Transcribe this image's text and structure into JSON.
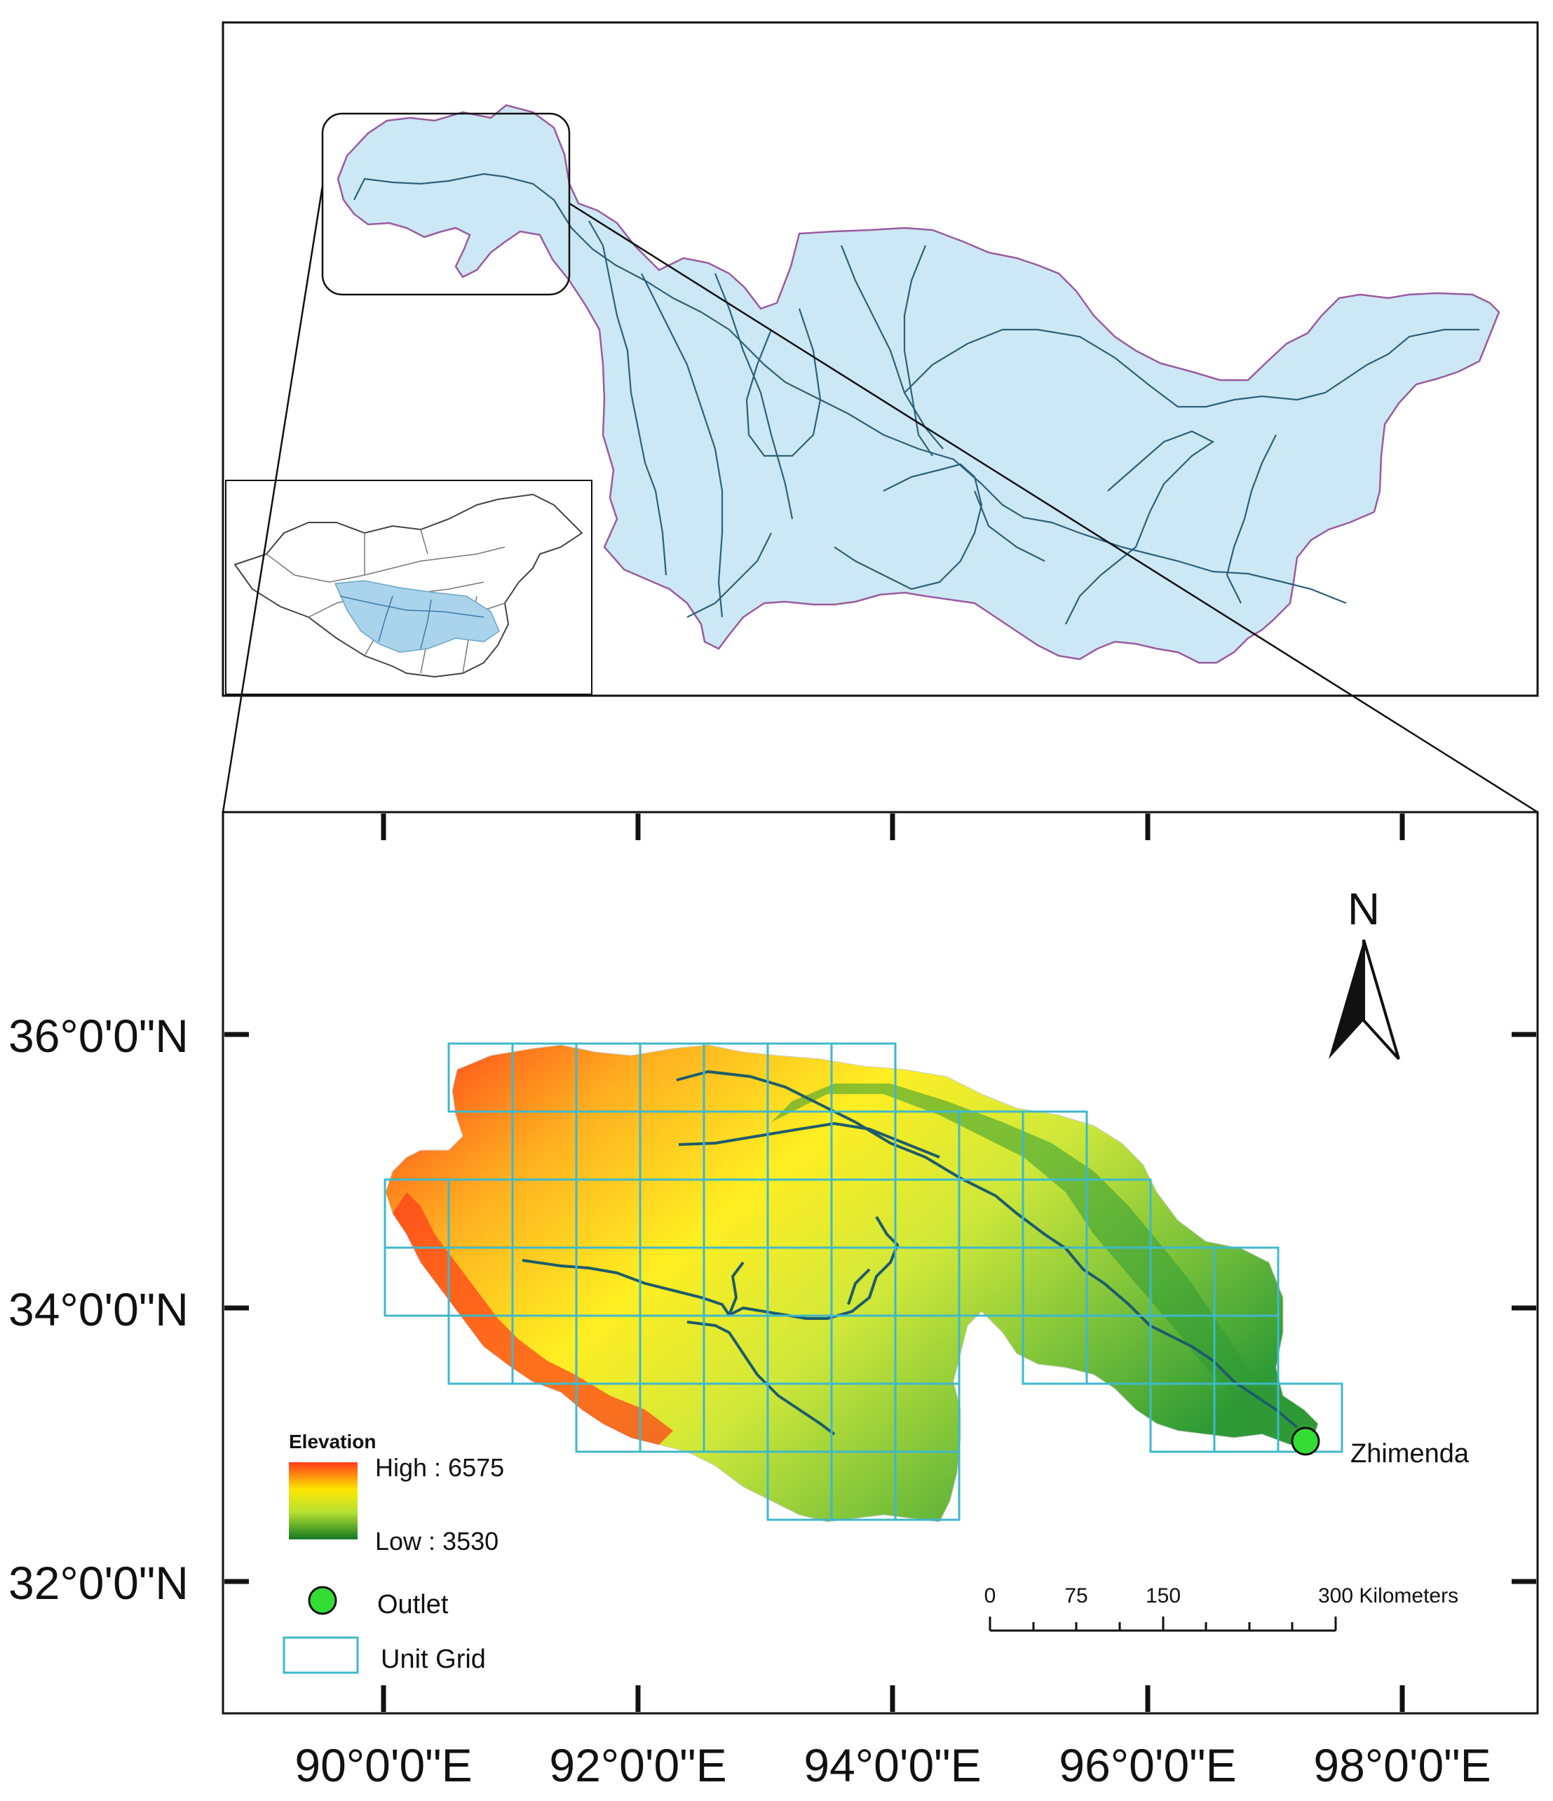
{
  "overview_panel": {
    "basin_fill": "#cce8f4",
    "basin_outline": "#9b5aa0",
    "river_color": "#2d5f7a"
  },
  "detail_panel": {
    "north_arrow": {
      "label": "N",
      "icon": "north-arrow-icon"
    },
    "lat_labels": [
      "36°0'0\"N",
      "34°0'0\"N",
      "32°0'0\"N"
    ],
    "lon_labels": [
      "90°0'0\"E",
      "92°0'0\"E",
      "94°0'0\"E",
      "96°0'0\"E",
      "98°0'0\"E"
    ],
    "outlet": {
      "label": "Zhimenda",
      "color": "#33dd33"
    },
    "grid_color": "#3fb8cc",
    "legend": {
      "title": "Elevation",
      "high_label": "High : 6575",
      "low_label": "Low : 3530",
      "outlet_label": "Outlet",
      "grid_label": "Unit Grid"
    },
    "scale_bar": {
      "ticks": [
        "0",
        "75",
        "150",
        "300 Kilometers"
      ]
    },
    "elevation_colors": [
      "#ff4b1f",
      "#ffe600",
      "#c8ea33",
      "#1a8a2a"
    ]
  }
}
